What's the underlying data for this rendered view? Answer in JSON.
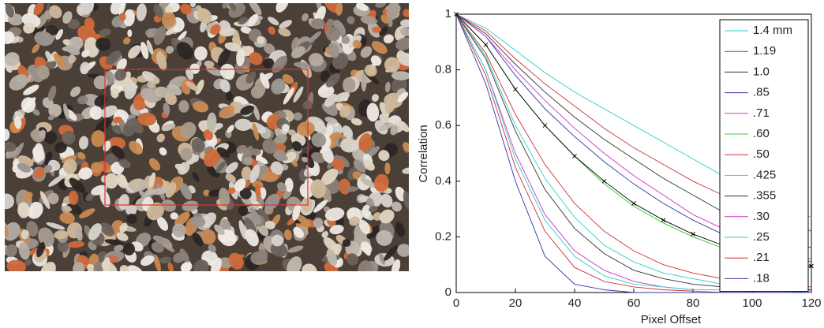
{
  "chart_data": {
    "type": "line",
    "xlabel": "Pixel Offset",
    "ylabel": "Correlation",
    "x": [
      0,
      10,
      20,
      30,
      40,
      50,
      60,
      70,
      80,
      90,
      100,
      110,
      120
    ],
    "xlim": [
      0,
      120
    ],
    "xticks": [
      0,
      20,
      40,
      60,
      80,
      100,
      120
    ],
    "ylim": [
      0,
      1
    ],
    "yticks": [
      0,
      0.2,
      0.4,
      0.6,
      0.8,
      1
    ],
    "legend": "upper right",
    "series": [
      {
        "name": "1.4 mm",
        "color": "#33cccc",
        "values": [
          1,
          0.95,
          0.87,
          0.79,
          0.72,
          0.66,
          0.6,
          0.54,
          0.48,
          0.42,
          0.37,
          0.32,
          0.27
        ]
      },
      {
        "name": "1.19",
        "color": "#cc3333",
        "values": [
          1,
          0.94,
          0.84,
          0.75,
          0.67,
          0.59,
          0.52,
          0.46,
          0.4,
          0.35,
          0.3,
          0.26,
          0.22
        ]
      },
      {
        "name": "1.0",
        "color": "#333333",
        "values": [
          1,
          0.93,
          0.82,
          0.72,
          0.63,
          0.55,
          0.48,
          0.41,
          0.35,
          0.29,
          0.24,
          0.2,
          0.16
        ]
      },
      {
        "name": ".85",
        "color": "#3333aa",
        "values": [
          1,
          0.92,
          0.78,
          0.66,
          0.56,
          0.47,
          0.39,
          0.32,
          0.26,
          0.21,
          0.17,
          0.14,
          0.11
        ]
      },
      {
        "name": ".71",
        "color": "#cc33cc",
        "values": [
          1,
          0.92,
          0.8,
          0.69,
          0.59,
          0.5,
          0.42,
          0.35,
          0.28,
          0.23,
          0.18,
          0.15,
          0.12
        ]
      },
      {
        "name": ".60",
        "color": "#33cc33",
        "values": [
          1,
          0.89,
          0.73,
          0.6,
          0.49,
          0.39,
          0.31,
          0.25,
          0.2,
          0.16,
          0.13,
          0.11,
          0.09
        ]
      },
      {
        "name": ".50",
        "color": "#cc3333",
        "values": [
          1,
          0.86,
          0.64,
          0.46,
          0.32,
          0.22,
          0.15,
          0.1,
          0.07,
          0.05,
          0.04,
          0.03,
          0.02
        ]
      },
      {
        "name": ".425",
        "color": "#33cccc",
        "values": [
          1,
          0.85,
          0.6,
          0.41,
          0.27,
          0.17,
          0.11,
          0.07,
          0.05,
          0.03,
          0.02,
          0.015,
          0.01
        ]
      },
      {
        "name": ".355",
        "color": "#333333",
        "values": [
          1,
          0.84,
          0.58,
          0.37,
          0.23,
          0.14,
          0.08,
          0.05,
          0.03,
          0.02,
          0.015,
          0.01,
          0.01
        ]
      },
      {
        "name": ".30",
        "color": "#cc33cc",
        "values": [
          1,
          0.8,
          0.5,
          0.28,
          0.15,
          0.08,
          0.04,
          0.02,
          0.01,
          0.01,
          0.01,
          0.01,
          0.005
        ]
      },
      {
        "name": ".25",
        "color": "#33cccc",
        "values": [
          1,
          0.8,
          0.48,
          0.26,
          0.13,
          0.06,
          0.03,
          0.02,
          0.01,
          0.01,
          0.005,
          0.005,
          0
        ]
      },
      {
        "name": ".21",
        "color": "#cc3333",
        "values": [
          1,
          0.78,
          0.45,
          0.22,
          0.09,
          0.04,
          0.02,
          0.01,
          0.005,
          0,
          0,
          0,
          0
        ]
      },
      {
        "name": ".18",
        "color": "#3333aa",
        "values": [
          1,
          0.75,
          0.4,
          0.13,
          0.03,
          0.01,
          0,
          0,
          0,
          0,
          0,
          0,
          0
        ]
      },
      {
        "color": "#000000",
        "marker": "x",
        "values": [
          1,
          0.89,
          0.73,
          0.6,
          0.49,
          0.4,
          0.32,
          0.26,
          0.21,
          0.17,
          0.14,
          0.11,
          0.095
        ]
      }
    ]
  }
}
